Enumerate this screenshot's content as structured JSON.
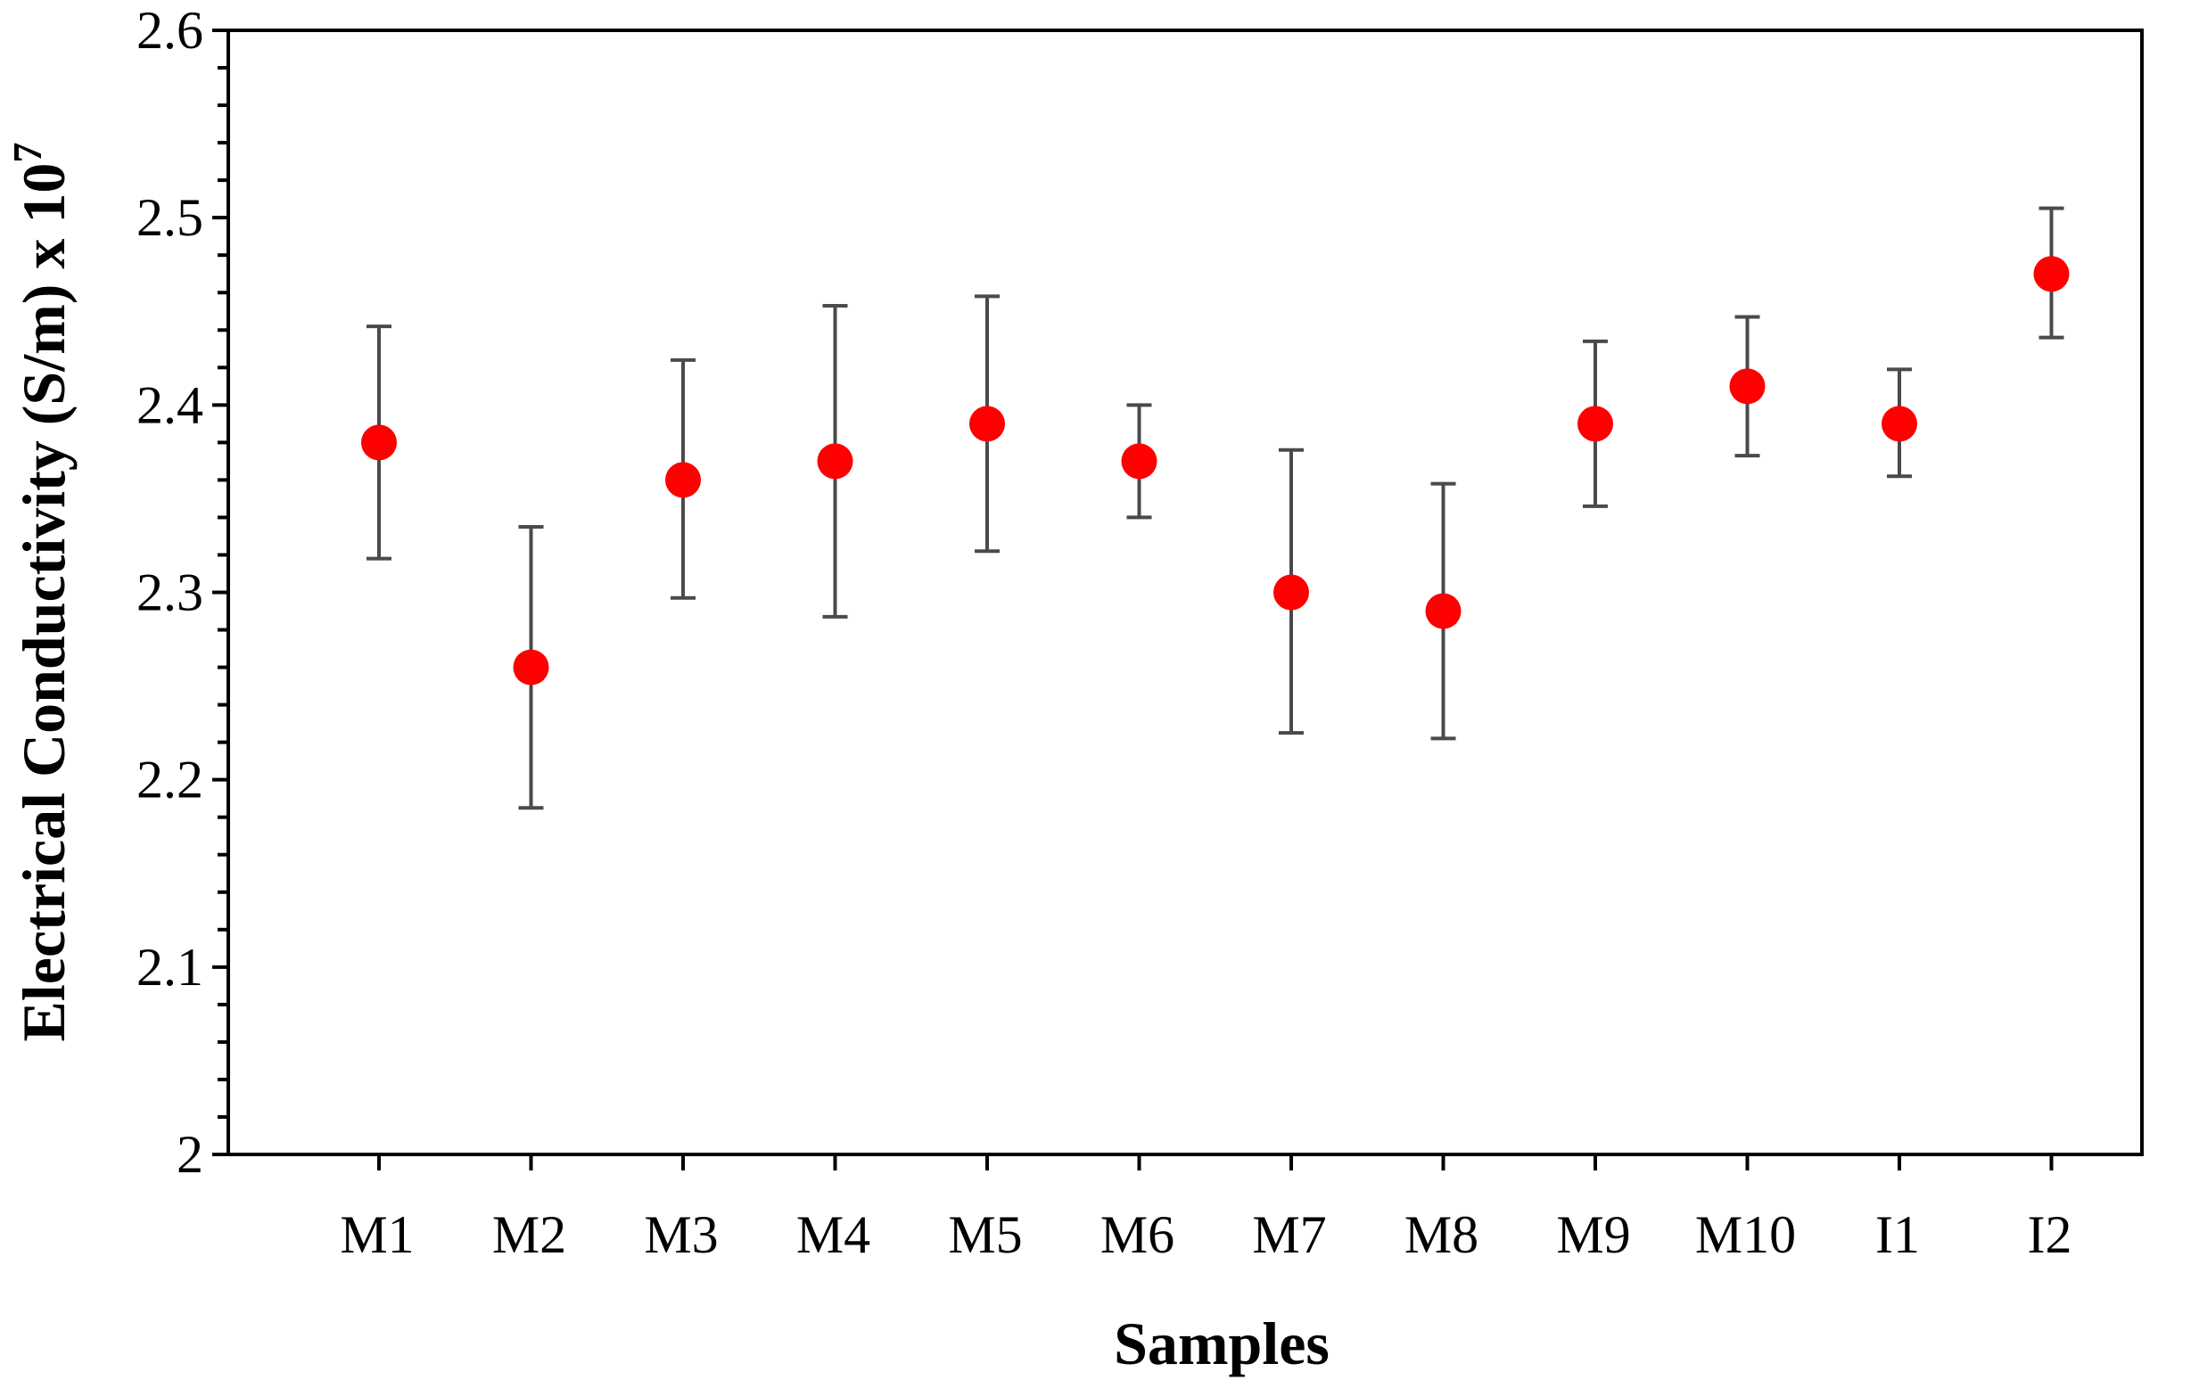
{
  "chart_data": {
    "type": "scatter",
    "title": "",
    "xlabel": "Samples",
    "ylabel": "Electrical Conductivity (S/m) x 10",
    "ylabel_superscript": "7",
    "categories": [
      "M1",
      "M2",
      "M3",
      "M4",
      "M5",
      "M6",
      "M7",
      "M8",
      "M9",
      "M10",
      "I1",
      "I2"
    ],
    "values": [
      2.38,
      2.26,
      2.36,
      2.37,
      2.39,
      2.37,
      2.3,
      2.29,
      2.39,
      2.41,
      2.39,
      2.47
    ],
    "error_low": [
      2.318,
      2.185,
      2.297,
      2.287,
      2.322,
      2.34,
      2.225,
      2.222,
      2.346,
      2.373,
      2.362,
      2.436
    ],
    "error_high": [
      2.442,
      2.335,
      2.424,
      2.453,
      2.458,
      2.4,
      2.376,
      2.358,
      2.434,
      2.447,
      2.419,
      2.505
    ],
    "ylim": [
      2,
      2.6
    ],
    "yticks": [
      "2",
      "2.1",
      "2.2",
      "2.3",
      "2.4",
      "2.5",
      "2.6"
    ],
    "minor_y_step": 0.02,
    "grid": false,
    "legend": "none",
    "marker_color": "#ff0000",
    "errorbar_color": "#4a4a4a"
  }
}
